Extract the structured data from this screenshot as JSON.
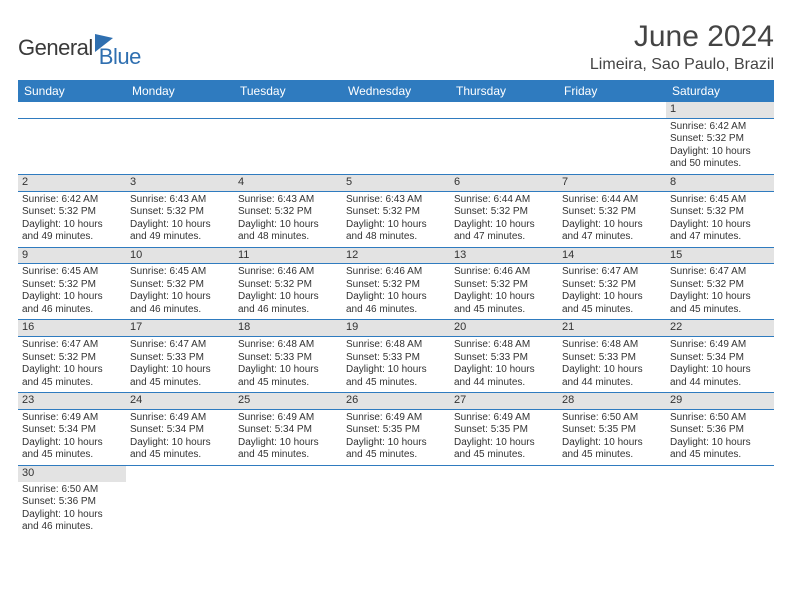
{
  "brand": {
    "part1": "General",
    "part2": "Blue"
  },
  "title": "June 2024",
  "location": "Limeira, Sao Paulo, Brazil",
  "colors": {
    "header_bg": "#2f7bbf",
    "header_fg": "#ffffff",
    "daynum_bg": "#e3e3e3",
    "rule": "#2f7bbf",
    "logo_blue": "#2f6fb0",
    "text": "#333333"
  },
  "layout": {
    "columns": 7,
    "rows": 6,
    "first_weekday_index": 6
  },
  "weekdays": [
    "Sunday",
    "Monday",
    "Tuesday",
    "Wednesday",
    "Thursday",
    "Friday",
    "Saturday"
  ],
  "days": {
    "1": {
      "sunrise": "6:42 AM",
      "sunset": "5:32 PM",
      "daylight": "10 hours and 50 minutes."
    },
    "2": {
      "sunrise": "6:42 AM",
      "sunset": "5:32 PM",
      "daylight": "10 hours and 49 minutes."
    },
    "3": {
      "sunrise": "6:43 AM",
      "sunset": "5:32 PM",
      "daylight": "10 hours and 49 minutes."
    },
    "4": {
      "sunrise": "6:43 AM",
      "sunset": "5:32 PM",
      "daylight": "10 hours and 48 minutes."
    },
    "5": {
      "sunrise": "6:43 AM",
      "sunset": "5:32 PM",
      "daylight": "10 hours and 48 minutes."
    },
    "6": {
      "sunrise": "6:44 AM",
      "sunset": "5:32 PM",
      "daylight": "10 hours and 47 minutes."
    },
    "7": {
      "sunrise": "6:44 AM",
      "sunset": "5:32 PM",
      "daylight": "10 hours and 47 minutes."
    },
    "8": {
      "sunrise": "6:45 AM",
      "sunset": "5:32 PM",
      "daylight": "10 hours and 47 minutes."
    },
    "9": {
      "sunrise": "6:45 AM",
      "sunset": "5:32 PM",
      "daylight": "10 hours and 46 minutes."
    },
    "10": {
      "sunrise": "6:45 AM",
      "sunset": "5:32 PM",
      "daylight": "10 hours and 46 minutes."
    },
    "11": {
      "sunrise": "6:46 AM",
      "sunset": "5:32 PM",
      "daylight": "10 hours and 46 minutes."
    },
    "12": {
      "sunrise": "6:46 AM",
      "sunset": "5:32 PM",
      "daylight": "10 hours and 46 minutes."
    },
    "13": {
      "sunrise": "6:46 AM",
      "sunset": "5:32 PM",
      "daylight": "10 hours and 45 minutes."
    },
    "14": {
      "sunrise": "6:47 AM",
      "sunset": "5:32 PM",
      "daylight": "10 hours and 45 minutes."
    },
    "15": {
      "sunrise": "6:47 AM",
      "sunset": "5:32 PM",
      "daylight": "10 hours and 45 minutes."
    },
    "16": {
      "sunrise": "6:47 AM",
      "sunset": "5:32 PM",
      "daylight": "10 hours and 45 minutes."
    },
    "17": {
      "sunrise": "6:47 AM",
      "sunset": "5:33 PM",
      "daylight": "10 hours and 45 minutes."
    },
    "18": {
      "sunrise": "6:48 AM",
      "sunset": "5:33 PM",
      "daylight": "10 hours and 45 minutes."
    },
    "19": {
      "sunrise": "6:48 AM",
      "sunset": "5:33 PM",
      "daylight": "10 hours and 45 minutes."
    },
    "20": {
      "sunrise": "6:48 AM",
      "sunset": "5:33 PM",
      "daylight": "10 hours and 44 minutes."
    },
    "21": {
      "sunrise": "6:48 AM",
      "sunset": "5:33 PM",
      "daylight": "10 hours and 44 minutes."
    },
    "22": {
      "sunrise": "6:49 AM",
      "sunset": "5:34 PM",
      "daylight": "10 hours and 44 minutes."
    },
    "23": {
      "sunrise": "6:49 AM",
      "sunset": "5:34 PM",
      "daylight": "10 hours and 45 minutes."
    },
    "24": {
      "sunrise": "6:49 AM",
      "sunset": "5:34 PM",
      "daylight": "10 hours and 45 minutes."
    },
    "25": {
      "sunrise": "6:49 AM",
      "sunset": "5:34 PM",
      "daylight": "10 hours and 45 minutes."
    },
    "26": {
      "sunrise": "6:49 AM",
      "sunset": "5:35 PM",
      "daylight": "10 hours and 45 minutes."
    },
    "27": {
      "sunrise": "6:49 AM",
      "sunset": "5:35 PM",
      "daylight": "10 hours and 45 minutes."
    },
    "28": {
      "sunrise": "6:50 AM",
      "sunset": "5:35 PM",
      "daylight": "10 hours and 45 minutes."
    },
    "29": {
      "sunrise": "6:50 AM",
      "sunset": "5:36 PM",
      "daylight": "10 hours and 45 minutes."
    },
    "30": {
      "sunrise": "6:50 AM",
      "sunset": "5:36 PM",
      "daylight": "10 hours and 46 minutes."
    }
  },
  "labels": {
    "sunrise": "Sunrise:",
    "sunset": "Sunset:",
    "daylight": "Daylight:"
  }
}
